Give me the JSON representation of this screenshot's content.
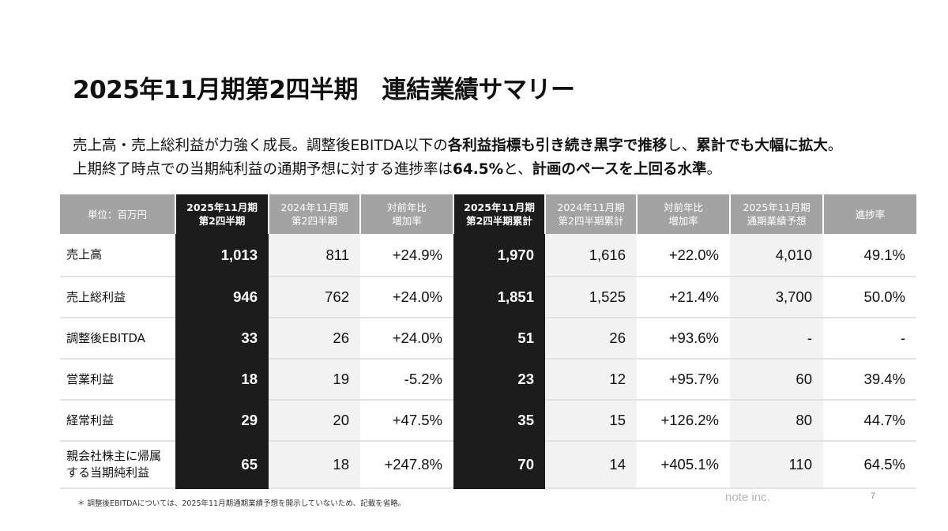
{
  "title": "2025年11月期第2四半期　連結業績サマリー",
  "lead": {
    "line1": [
      {
        "text": "売上高・売上総利益が力強く成長。調整後EBITDA以下の",
        "bold": false
      },
      {
        "text": "各利益指標も引き続き黒字で推移",
        "bold": true
      },
      {
        "text": "し、",
        "bold": false
      },
      {
        "text": "累計でも大幅に拡大",
        "bold": true
      },
      {
        "text": "。",
        "bold": false
      }
    ],
    "line2": [
      {
        "text": "上期終了時点での当期純利益の通期予想に対する進捗率は",
        "bold": false
      },
      {
        "text": "64.5%",
        "bold": true
      },
      {
        "text": "と、",
        "bold": false
      },
      {
        "text": "計画のペースを上回る水準",
        "bold": true
      },
      {
        "text": "。",
        "bold": false
      }
    ]
  },
  "table": {
    "headers": [
      {
        "lines": [
          "単位：百万円"
        ],
        "style": "rowhead"
      },
      {
        "lines": [
          "2025年11月期",
          "第2四半期"
        ],
        "style": "dark"
      },
      {
        "lines": [
          "2024年11月期",
          "第2四半期"
        ],
        "style": "gray"
      },
      {
        "lines": [
          "対前年比",
          "増加率"
        ],
        "style": "gray"
      },
      {
        "lines": [
          "2025年11月期",
          "第2四半期累計"
        ],
        "style": "dark"
      },
      {
        "lines": [
          "2024年11月期",
          "第2四半期累計"
        ],
        "style": "gray"
      },
      {
        "lines": [
          "対前年比",
          "増加率"
        ],
        "style": "gray"
      },
      {
        "lines": [
          "2025年11月期",
          "通期業績予想"
        ],
        "style": "gray"
      },
      {
        "lines": [
          "進捗率"
        ],
        "style": "gray"
      }
    ],
    "rows": [
      {
        "label": [
          "売上高"
        ],
        "values": [
          "1,013",
          "811",
          "+24.9%",
          "1,970",
          "1,616",
          "+22.0%",
          "4,010",
          "49.1%"
        ]
      },
      {
        "label": [
          "売上総利益"
        ],
        "values": [
          "946",
          "762",
          "+24.0%",
          "1,851",
          "1,525",
          "+21.4%",
          "3,700",
          "50.0%"
        ]
      },
      {
        "label": [
          "調整後EBITDA"
        ],
        "values": [
          "33",
          "26",
          "+24.0%",
          "51",
          "26",
          "+93.6%",
          "-",
          "-"
        ]
      },
      {
        "label": [
          "営業利益"
        ],
        "values": [
          "18",
          "19",
          "-5.2%",
          "23",
          "12",
          "+95.7%",
          "60",
          "39.4%"
        ]
      },
      {
        "label": [
          "経常利益"
        ],
        "values": [
          "29",
          "20",
          "+47.5%",
          "35",
          "15",
          "+126.2%",
          "80",
          "44.7%"
        ]
      },
      {
        "label": [
          "親会社株主に帰属",
          "する当期純利益"
        ],
        "values": [
          "65",
          "18",
          "+247.8%",
          "70",
          "14",
          "+405.1%",
          "110",
          "64.5%"
        ]
      }
    ]
  },
  "footnote": "＊ 調整後EBITDAについては、2025年11月期通期業績予想を開示していないため、記載を省略。",
  "brand": "note inc.",
  "page_number": "7"
}
